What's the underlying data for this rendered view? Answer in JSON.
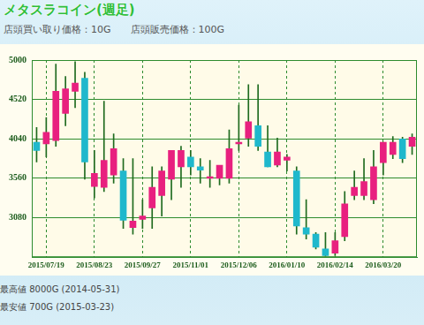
{
  "chart_data": {
    "type": "candlestick",
    "title": "メタスラコイン(週足)",
    "subtitle": "店頭買い取り価格：10G　　店頭販売価格：100G",
    "annotations": [
      "最高値 8000G (2014-05-31)",
      "最安値 700G (2015-03-23)"
    ],
    "categories": [
      null,
      "2015/07/19",
      null,
      null,
      null,
      null,
      "2015/08/23",
      null,
      null,
      null,
      null,
      "2015/09/27",
      null,
      null,
      null,
      null,
      "2015/11/01",
      null,
      null,
      null,
      null,
      "2015/12/06",
      null,
      null,
      null,
      null,
      "2016/01/10",
      null,
      null,
      null,
      null,
      "2016/02/14",
      null,
      null,
      null,
      null,
      "2016/03/20",
      null,
      null,
      null
    ],
    "open": [
      4000,
      3980,
      4020,
      4350,
      4620,
      4780,
      3460,
      3450,
      3600,
      3650,
      2960,
      3060,
      3200,
      3350,
      3550,
      3700,
      3820,
      3700,
      3560,
      3560,
      3560,
      3980,
      4050,
      4200,
      3880,
      3720,
      3780,
      3650,
      2960,
      2880,
      2700,
      2650,
      2850,
      3350,
      3350,
      3300,
      3750,
      3850,
      4040,
      3950
    ],
    "high": [
      4180,
      4300,
      4950,
      4800,
      4980,
      4850,
      3900,
      4500,
      4100,
      3800,
      3800,
      3300,
      3700,
      3700,
      3900,
      3950,
      3900,
      3800,
      3780,
      3700,
      4150,
      4450,
      4700,
      4700,
      4200,
      4050,
      3850,
      3700,
      3300,
      2900,
      2900,
      2900,
      3400,
      3650,
      3800,
      3900,
      4000,
      4070,
      4060,
      4100
    ],
    "low": [
      3760,
      3820,
      3950,
      4200,
      4420,
      3550,
      3320,
      3400,
      3500,
      2950,
      2880,
      2950,
      2950,
      3100,
      3300,
      3450,
      3600,
      3500,
      3450,
      3480,
      3500,
      3900,
      3950,
      3900,
      3700,
      3700,
      3650,
      2880,
      2820,
      2700,
      2610,
      2620,
      2800,
      3300,
      3300,
      3250,
      3600,
      3800,
      3750,
      3850
    ],
    "close": [
      3900,
      4120,
      4620,
      4650,
      4720,
      3760,
      3620,
      3780,
      3920,
      3050,
      3040,
      3100,
      3450,
      3650,
      3900,
      3900,
      3700,
      3660,
      3580,
      3720,
      3920,
      4000,
      4250,
      3950,
      3700,
      3880,
      3820,
      2980,
      2880,
      2720,
      2620,
      2800,
      3250,
      3450,
      3520,
      3700,
      4000,
      4000,
      3800,
      4060
    ],
    "colors": [
      "#1fb8cc",
      "#e8207f",
      "#e8207f",
      "#e8207f",
      "#e8207f",
      "#1fb8cc",
      "#e8207f",
      "#e8207f",
      "#e8207f",
      "#1fb8cc",
      "#e8207f",
      "#e8207f",
      "#e8207f",
      "#e8207f",
      "#e8207f",
      "#e8207f",
      "#1fb8cc",
      "#1fb8cc",
      "#e8207f",
      "#e8207f",
      "#e8207f",
      "#e8207f",
      "#e8207f",
      "#1fb8cc",
      "#1fb8cc",
      "#e8207f",
      "#e8207f",
      "#1fb8cc",
      "#1fb8cc",
      "#1fb8cc",
      "#1fb8cc",
      "#e8207f",
      "#e8207f",
      "#e8207f",
      "#e8207f",
      "#e8207f",
      "#e8207f",
      "#e8207f",
      "#1fb8cc",
      "#e8207f"
    ],
    "ylim": [
      2600,
      5000
    ],
    "yticks": [
      3080,
      3560,
      4040,
      4520,
      5000
    ],
    "grid": true
  }
}
